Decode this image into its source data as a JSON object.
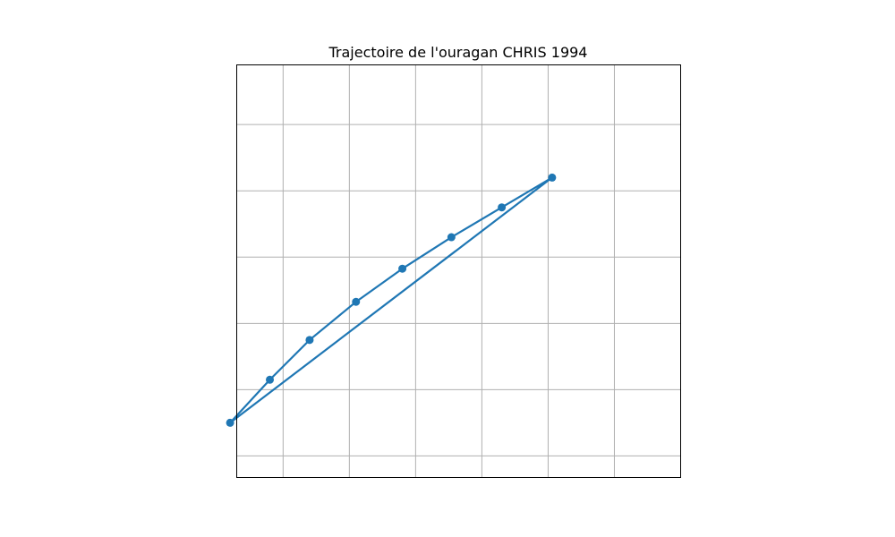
{
  "chart_data": {
    "type": "line",
    "title": "Trajectoire de l'ouragan CHRIS 1994",
    "xlabel": "",
    "ylabel": "",
    "grid": true,
    "axis_tick_labels_visible": false,
    "series": [
      {
        "color": "#1f77b4",
        "marker": "circle",
        "points": [
          {
            "x": -59.0,
            "y": 18.0
          },
          {
            "x": -56.0,
            "y": 20.6
          },
          {
            "x": -53.0,
            "y": 23.0
          },
          {
            "x": -49.5,
            "y": 25.3
          },
          {
            "x": -46.0,
            "y": 27.3
          },
          {
            "x": -42.3,
            "y": 29.2
          },
          {
            "x": -38.5,
            "y": 31.0
          },
          {
            "x": -34.7,
            "y": 32.8
          },
          {
            "x": -59.0,
            "y": 18.0
          }
        ]
      }
    ],
    "x_grid": [
      -55,
      -50,
      -45,
      -40,
      -35,
      -30
    ],
    "y_grid": [
      16,
      20,
      24,
      28,
      32,
      36
    ],
    "xlim": [
      -58.5,
      -25.0
    ],
    "ylim": [
      14.7,
      39.6
    ]
  }
}
